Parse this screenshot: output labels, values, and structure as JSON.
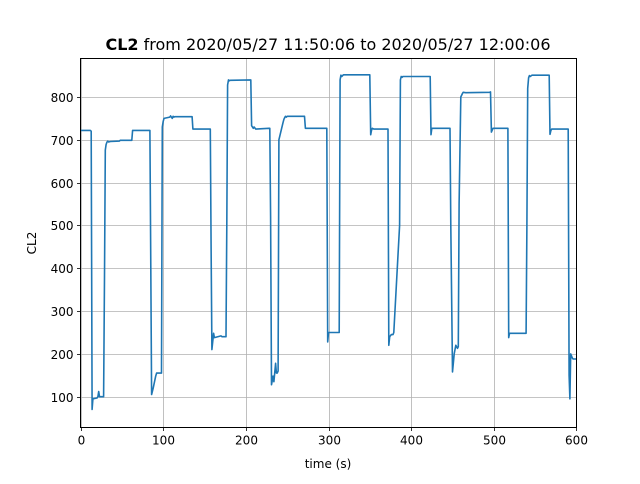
{
  "chart_data": {
    "type": "line",
    "title_bold": "CL2",
    "title_rest": " from 2020/05/27 11:50:06 to 2020/05/27 12:00:06",
    "xlabel": "time (s)",
    "ylabel": "CL2",
    "xlim": [
      0,
      600
    ],
    "ylim": [
      28,
      890
    ],
    "grid": true,
    "xticks": [
      0,
      100,
      200,
      300,
      400,
      500,
      600
    ],
    "yticks": [
      100,
      200,
      300,
      400,
      500,
      600,
      700,
      800
    ],
    "line_color": "#1f77b4",
    "series": [
      {
        "x": [
          0,
          12,
          13,
          14,
          15,
          20,
          21,
          22,
          23,
          28,
          29,
          30,
          31,
          32,
          33,
          34,
          36,
          47,
          48,
          62,
          63,
          84,
          85,
          86,
          88,
          91,
          92,
          97,
          98,
          99,
          100,
          101,
          108,
          109,
          111,
          112,
          113,
          114,
          135,
          136,
          157,
          158,
          159,
          161,
          162,
          170,
          171,
          176,
          177,
          178,
          179,
          180,
          181,
          205,
          206,
          207,
          209,
          210,
          212,
          228,
          229,
          230,
          231,
          233,
          234,
          236,
          237,
          238,
          239,
          240,
          245,
          246,
          247,
          248,
          249,
          250,
          271,
          272,
          298,
          299,
          300,
          301,
          313,
          314,
          315,
          316,
          318,
          350,
          351,
          352,
          353,
          355,
          356,
          372,
          373,
          374,
          376,
          378,
          379,
          386,
          387,
          388,
          389,
          390,
          392,
          423,
          424,
          425,
          447,
          448,
          450,
          452,
          453,
          454,
          456,
          457,
          458,
          460,
          462,
          463,
          466,
          495,
          496,
          497,
          499,
          500,
          517,
          518,
          519,
          520,
          539,
          540,
          541,
          542,
          543,
          544,
          546,
          567,
          568,
          569,
          570,
          572,
          590,
          591,
          592,
          593,
          595,
          596,
          600
        ],
        "y": [
          722,
          722,
          720,
          70,
          95,
          97,
          100,
          112,
          100,
          100,
          380,
          676,
          689,
          695,
          697,
          695,
          696,
          697,
          699,
          699,
          722,
          722,
          400,
          105,
          120,
          148,
          155,
          155,
          155,
          730,
          743,
          750,
          753,
          756,
          750,
          755,
          753,
          754,
          754,
          725,
          725,
          450,
          210,
          248,
          238,
          242,
          240,
          240,
          500,
          828,
          840,
          838,
          839,
          840,
          840,
          733,
          727,
          730,
          725,
          727,
          727,
          520,
          128,
          148,
          135,
          178,
          155,
          155,
          160,
          700,
          740,
          748,
          752,
          755,
          753,
          755,
          755,
          727,
          727,
          228,
          250,
          250,
          250,
          840,
          851,
          848,
          852,
          852,
          712,
          722,
          727,
          725,
          725,
          725,
          220,
          240,
          245,
          245,
          250,
          500,
          840,
          848,
          846,
          848,
          848,
          848,
          712,
          727,
          727,
          500,
          158,
          200,
          210,
          220,
          213,
          217,
          550,
          800,
          808,
          811,
          810,
          811,
          812,
          718,
          727,
          727,
          727,
          238,
          248,
          248,
          248,
          500,
          820,
          845,
          850,
          848,
          851,
          851,
          713,
          722,
          725,
          725,
          725,
          150,
          95,
          200,
          190,
          188,
          188
        ]
      }
    ]
  }
}
